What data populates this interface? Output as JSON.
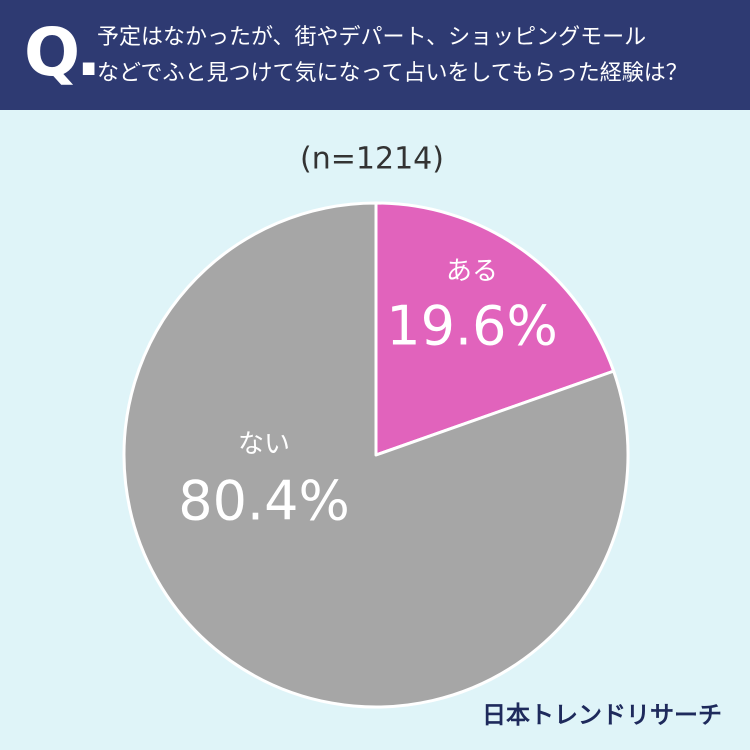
{
  "header": {
    "badge": "Q."
  },
  "chart_data": {
    "type": "pie",
    "title": "予定はなかったが、街やデパート、ショッピングモール\nなどでふと見つけて気になって占いをしてもらった経験は？",
    "subtitle": "(n=1214)",
    "categories": [
      "ある",
      "ない"
    ],
    "values": [
      19.6,
      80.4
    ],
    "value_labels": [
      "19.6%",
      "80.4%"
    ],
    "colors": [
      "#e163bc",
      "#a6a6a6"
    ],
    "source": "日本トレンドリサーチ"
  }
}
